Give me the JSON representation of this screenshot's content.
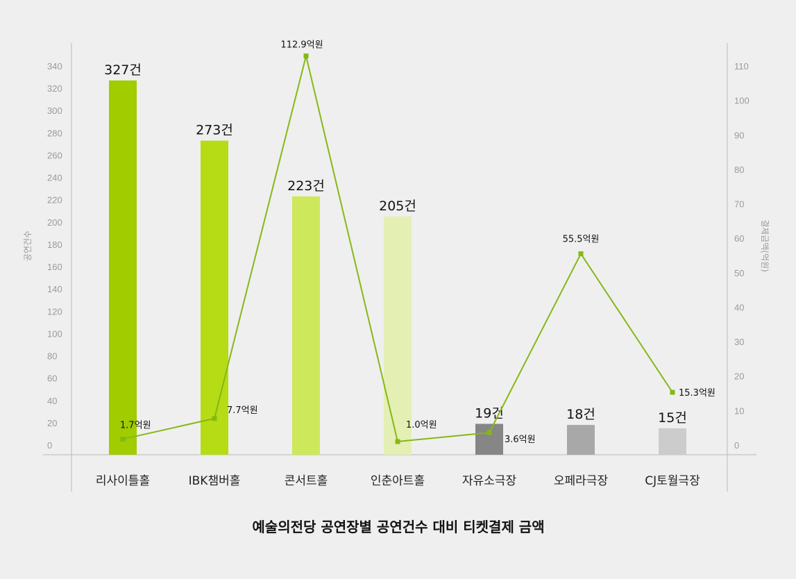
{
  "chart_data": {
    "type": "bar",
    "title": "예술의전당 공연장별 공연건수 대비 티켓결제 금액",
    "categories": [
      "리사이틀홀",
      "IBK챔버홀",
      "콘서트홀",
      "인춘아트홀",
      "자유소극장",
      "오페라극장",
      "CJ토월극장"
    ],
    "ylabel_left": "공연건수",
    "ylabel_right": "결제금액(억원)",
    "ylim_left": [
      0,
      340
    ],
    "ylim_right": [
      0,
      110
    ],
    "yticks_left": [
      0,
      20,
      40,
      60,
      80,
      100,
      120,
      140,
      160,
      180,
      200,
      220,
      240,
      260,
      280,
      300,
      320,
      340
    ],
    "yticks_right": [
      0,
      10,
      20,
      30,
      40,
      50,
      60,
      70,
      80,
      90,
      100,
      110
    ],
    "grid": false,
    "series": [
      {
        "type": "bar",
        "axis": "left",
        "values": [
          327,
          273,
          223,
          205,
          19,
          18,
          15
        ],
        "labels": [
          "327건",
          "273건",
          "223건",
          "205건",
          "19건",
          "18건",
          "15건"
        ],
        "colors": [
          "#a0cc00",
          "#b5dc14",
          "#cde85a",
          "#e4efb4",
          "#868686",
          "#a8a8a8",
          "#cccccc"
        ]
      },
      {
        "type": "line",
        "axis": "right",
        "values": [
          1.7,
          7.7,
          112.9,
          1.0,
          3.6,
          55.5,
          15.3
        ],
        "labels": [
          "1.7억원",
          "7.7억원",
          "112.9억원",
          "1.0억원",
          "3.6억원",
          "55.5억원",
          "15.3억원"
        ],
        "color": "#86b814"
      }
    ]
  }
}
